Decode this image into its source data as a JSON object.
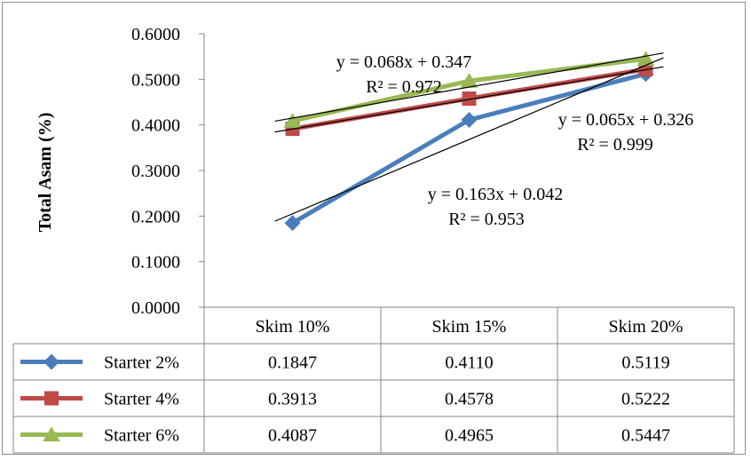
{
  "chart_data": {
    "type": "line",
    "ylabel": "Total Asam (%)",
    "ylim": [
      0,
      0.6
    ],
    "yticks": [
      "0.6000",
      "0.5000",
      "0.4000",
      "0.3000",
      "0.2000",
      "0.1000",
      "0.0000"
    ],
    "categories": [
      "Skim 10%",
      "Skim 15%",
      "Skim 20%"
    ],
    "series": [
      {
        "name": "Starter 2%",
        "color": "#4a7ebb",
        "marker": "diamond",
        "values": [
          0.1847,
          0.411,
          0.5119
        ],
        "display": [
          "0.1847",
          "0.4110",
          "0.5119"
        ],
        "trendline": {
          "slope": 0.163,
          "intercept": 0.042,
          "equation": "y = 0.163x + 0.042",
          "r2": "R² = 0.953"
        }
      },
      {
        "name": "Starter 4%",
        "color": "#be4b48",
        "marker": "square",
        "values": [
          0.3913,
          0.4578,
          0.5222
        ],
        "display": [
          "0.3913",
          "0.4578",
          "0.5222"
        ],
        "trendline": {
          "slope": 0.065,
          "intercept": 0.326,
          "equation": "y = 0.065x + 0.326",
          "r2": "R² = 0.999"
        }
      },
      {
        "name": "Starter 6%",
        "color": "#98b954",
        "marker": "triangle",
        "values": [
          0.4087,
          0.4965,
          0.5447
        ],
        "display": [
          "0.4087",
          "0.4965",
          "0.5447"
        ],
        "trendline": {
          "slope": 0.068,
          "intercept": 0.347,
          "equation": "y = 0.068x + 0.347",
          "r2": "R² = 0.972"
        }
      }
    ],
    "legend": "data-table-left",
    "grid": false
  }
}
